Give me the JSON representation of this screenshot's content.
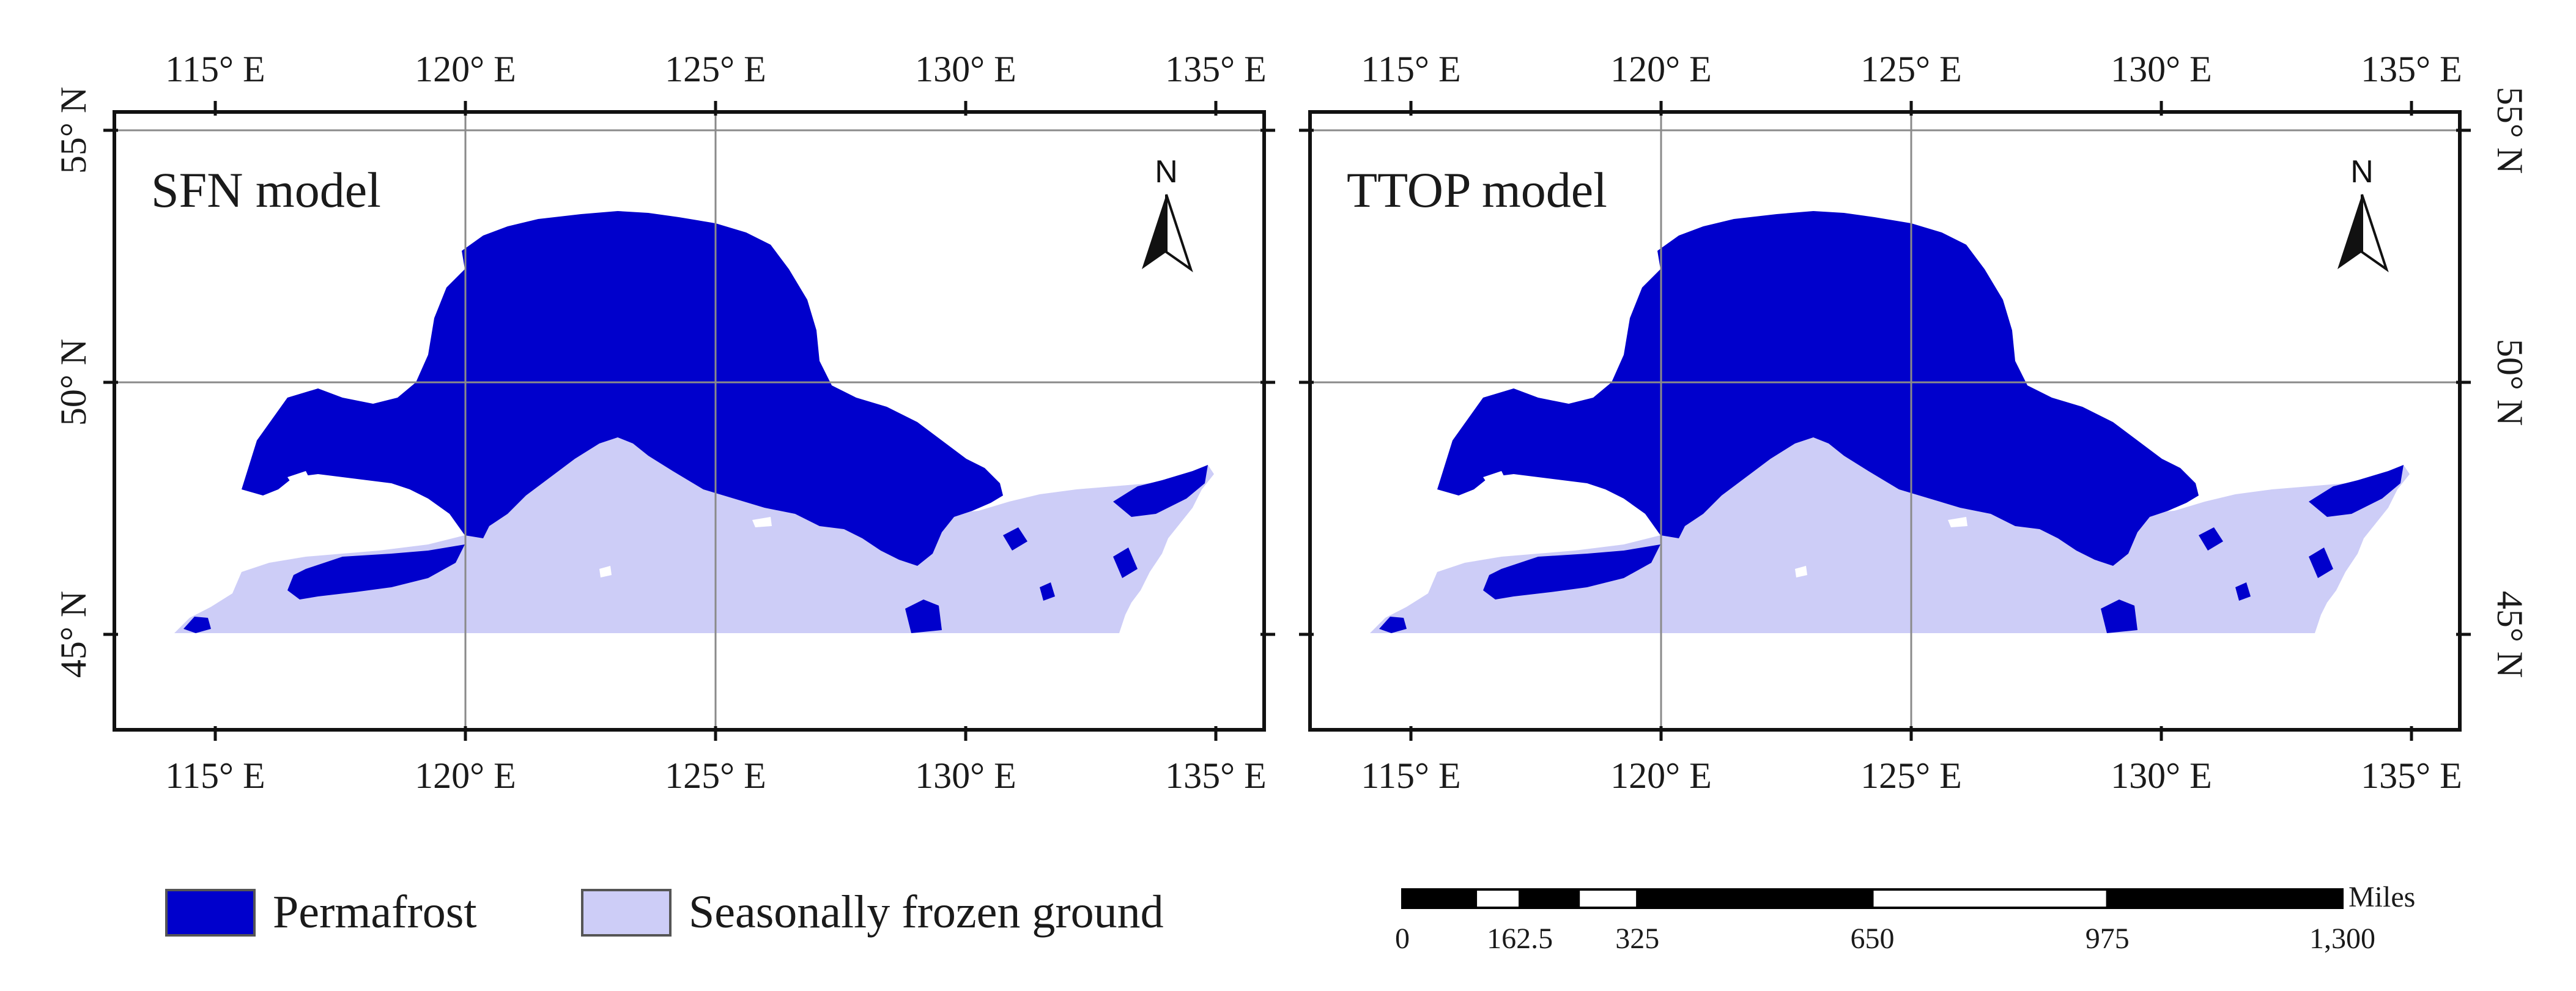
{
  "colors": {
    "permafrost": "#0000cc",
    "seasonal": "#cdcdf7",
    "frame": "#111111",
    "grid": "#8a8a8a",
    "text": "#1a1a1a"
  },
  "graticule": {
    "lon_labels": [
      "115° E",
      "120° E",
      "125° E",
      "130° E",
      "135° E"
    ],
    "lat_labels": [
      "45° N",
      "50° N",
      "55° N"
    ]
  },
  "panels": [
    {
      "title": "SFN model",
      "north_label": "N"
    },
    {
      "title": "TTOP model",
      "north_label": "N"
    }
  ],
  "legend": {
    "items": [
      {
        "label": "Permafrost",
        "color_key": "permafrost"
      },
      {
        "label": "Seasonally frozen ground",
        "color_key": "seasonal"
      }
    ]
  },
  "scale_bar": {
    "unit": "Miles",
    "ticks": [
      "0",
      "162.5",
      "325",
      "650",
      "975",
      "1,300"
    ]
  }
}
